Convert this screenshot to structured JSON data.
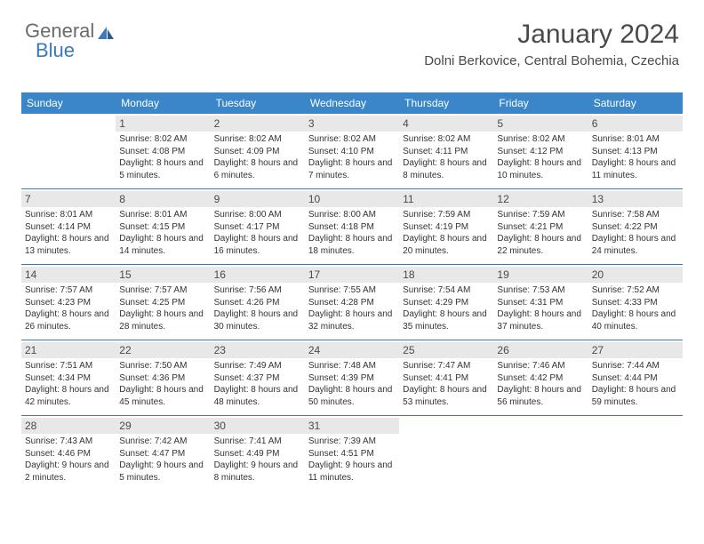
{
  "logo": {
    "part1": "General",
    "part2": "Blue"
  },
  "title": "January 2024",
  "location": "Dolni Berkovice, Central Bohemia, Czechia",
  "dayNames": [
    "Sunday",
    "Monday",
    "Tuesday",
    "Wednesday",
    "Thursday",
    "Friday",
    "Saturday"
  ],
  "colors": {
    "headerBg": "#3a86c8",
    "headerText": "#ffffff",
    "dayNumBg": "#e8e8e8",
    "weekBorder": "#3a7ab8",
    "bodyText": "#333333",
    "titleText": "#4a4a4a"
  },
  "weeks": [
    [
      null,
      {
        "n": "1",
        "sunrise": "8:02 AM",
        "sunset": "4:08 PM",
        "daylight": "8 hours and 5 minutes."
      },
      {
        "n": "2",
        "sunrise": "8:02 AM",
        "sunset": "4:09 PM",
        "daylight": "8 hours and 6 minutes."
      },
      {
        "n": "3",
        "sunrise": "8:02 AM",
        "sunset": "4:10 PM",
        "daylight": "8 hours and 7 minutes."
      },
      {
        "n": "4",
        "sunrise": "8:02 AM",
        "sunset": "4:11 PM",
        "daylight": "8 hours and 8 minutes."
      },
      {
        "n": "5",
        "sunrise": "8:02 AM",
        "sunset": "4:12 PM",
        "daylight": "8 hours and 10 minutes."
      },
      {
        "n": "6",
        "sunrise": "8:01 AM",
        "sunset": "4:13 PM",
        "daylight": "8 hours and 11 minutes."
      }
    ],
    [
      {
        "n": "7",
        "sunrise": "8:01 AM",
        "sunset": "4:14 PM",
        "daylight": "8 hours and 13 minutes."
      },
      {
        "n": "8",
        "sunrise": "8:01 AM",
        "sunset": "4:15 PM",
        "daylight": "8 hours and 14 minutes."
      },
      {
        "n": "9",
        "sunrise": "8:00 AM",
        "sunset": "4:17 PM",
        "daylight": "8 hours and 16 minutes."
      },
      {
        "n": "10",
        "sunrise": "8:00 AM",
        "sunset": "4:18 PM",
        "daylight": "8 hours and 18 minutes."
      },
      {
        "n": "11",
        "sunrise": "7:59 AM",
        "sunset": "4:19 PM",
        "daylight": "8 hours and 20 minutes."
      },
      {
        "n": "12",
        "sunrise": "7:59 AM",
        "sunset": "4:21 PM",
        "daylight": "8 hours and 22 minutes."
      },
      {
        "n": "13",
        "sunrise": "7:58 AM",
        "sunset": "4:22 PM",
        "daylight": "8 hours and 24 minutes."
      }
    ],
    [
      {
        "n": "14",
        "sunrise": "7:57 AM",
        "sunset": "4:23 PM",
        "daylight": "8 hours and 26 minutes."
      },
      {
        "n": "15",
        "sunrise": "7:57 AM",
        "sunset": "4:25 PM",
        "daylight": "8 hours and 28 minutes."
      },
      {
        "n": "16",
        "sunrise": "7:56 AM",
        "sunset": "4:26 PM",
        "daylight": "8 hours and 30 minutes."
      },
      {
        "n": "17",
        "sunrise": "7:55 AM",
        "sunset": "4:28 PM",
        "daylight": "8 hours and 32 minutes."
      },
      {
        "n": "18",
        "sunrise": "7:54 AM",
        "sunset": "4:29 PM",
        "daylight": "8 hours and 35 minutes."
      },
      {
        "n": "19",
        "sunrise": "7:53 AM",
        "sunset": "4:31 PM",
        "daylight": "8 hours and 37 minutes."
      },
      {
        "n": "20",
        "sunrise": "7:52 AM",
        "sunset": "4:33 PM",
        "daylight": "8 hours and 40 minutes."
      }
    ],
    [
      {
        "n": "21",
        "sunrise": "7:51 AM",
        "sunset": "4:34 PM",
        "daylight": "8 hours and 42 minutes."
      },
      {
        "n": "22",
        "sunrise": "7:50 AM",
        "sunset": "4:36 PM",
        "daylight": "8 hours and 45 minutes."
      },
      {
        "n": "23",
        "sunrise": "7:49 AM",
        "sunset": "4:37 PM",
        "daylight": "8 hours and 48 minutes."
      },
      {
        "n": "24",
        "sunrise": "7:48 AM",
        "sunset": "4:39 PM",
        "daylight": "8 hours and 50 minutes."
      },
      {
        "n": "25",
        "sunrise": "7:47 AM",
        "sunset": "4:41 PM",
        "daylight": "8 hours and 53 minutes."
      },
      {
        "n": "26",
        "sunrise": "7:46 AM",
        "sunset": "4:42 PM",
        "daylight": "8 hours and 56 minutes."
      },
      {
        "n": "27",
        "sunrise": "7:44 AM",
        "sunset": "4:44 PM",
        "daylight": "8 hours and 59 minutes."
      }
    ],
    [
      {
        "n": "28",
        "sunrise": "7:43 AM",
        "sunset": "4:46 PM",
        "daylight": "9 hours and 2 minutes."
      },
      {
        "n": "29",
        "sunrise": "7:42 AM",
        "sunset": "4:47 PM",
        "daylight": "9 hours and 5 minutes."
      },
      {
        "n": "30",
        "sunrise": "7:41 AM",
        "sunset": "4:49 PM",
        "daylight": "9 hours and 8 minutes."
      },
      {
        "n": "31",
        "sunrise": "7:39 AM",
        "sunset": "4:51 PM",
        "daylight": "9 hours and 11 minutes."
      },
      null,
      null,
      null
    ]
  ],
  "labels": {
    "sunrise": "Sunrise:",
    "sunset": "Sunset:",
    "daylight": "Daylight:"
  }
}
